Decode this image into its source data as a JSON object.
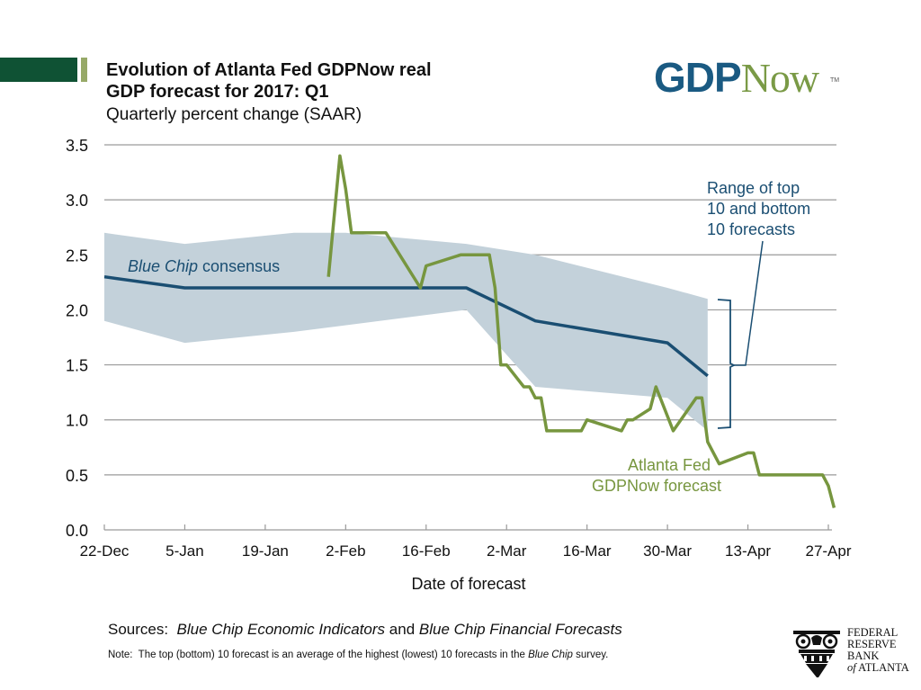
{
  "header": {
    "title_line1": "Evolution of Atlanta Fed GDPNow real",
    "title_line2": "GDP forecast for 2017: Q1",
    "subtitle": "Quarterly percent change (SAAR)"
  },
  "logo": {
    "part1": "GDP",
    "part2": "Now",
    "tm": "TM"
  },
  "colors": {
    "brand_dark_green": "#0f5234",
    "brand_light_green": "#97a968",
    "consensus_blue": "#1a4e72",
    "gdpnow_green": "#77963f",
    "range_fill": "#c3d1da",
    "grid": "#9a9a9a"
  },
  "chart_data": {
    "type": "line",
    "title": "Evolution of Atlanta Fed GDPNow real GDP forecast for 2017: Q1",
    "subtitle": "Quarterly percent change (SAAR)",
    "xlabel": "Date of forecast",
    "ylabel": "",
    "ylim": [
      0,
      3.5
    ],
    "y_ticks": [
      "0.0",
      "0.5",
      "1.0",
      "1.5",
      "2.0",
      "2.5",
      "3.0",
      "3.5"
    ],
    "y_tick_values": [
      0,
      0.5,
      1.0,
      1.5,
      2.0,
      2.5,
      3.0,
      3.5
    ],
    "x_domain_days": [
      0,
      126
    ],
    "x_ticks": [
      {
        "day": 0,
        "label": "22-Dec"
      },
      {
        "day": 14,
        "label": "5-Jan"
      },
      {
        "day": 28,
        "label": "19-Jan"
      },
      {
        "day": 42,
        "label": "2-Feb"
      },
      {
        "day": 56,
        "label": "16-Feb"
      },
      {
        "day": 70,
        "label": "2-Mar"
      },
      {
        "day": 84,
        "label": "16-Mar"
      },
      {
        "day": 98,
        "label": "30-Mar"
      },
      {
        "day": 112,
        "label": "13-Apr"
      },
      {
        "day": 126,
        "label": "27-Apr"
      }
    ],
    "grid": "horizontal",
    "series": [
      {
        "name": "Blue Chip consensus",
        "label_italic": "Blue Chip",
        "label_rest": " consensus",
        "points": [
          [
            0,
            2.3
          ],
          [
            14,
            2.2
          ],
          [
            63,
            2.2
          ],
          [
            75,
            1.9
          ],
          [
            98,
            1.7
          ],
          [
            105,
            1.4
          ]
        ]
      },
      {
        "name": "Atlanta Fed GDPNow forecast",
        "label_line1": "Atlanta Fed",
        "label_line2": "GDPNow forecast",
        "points": [
          [
            39,
            2.3
          ],
          [
            41,
            3.4
          ],
          [
            42,
            3.1
          ],
          [
            43,
            2.7
          ],
          [
            49,
            2.7
          ],
          [
            55,
            2.2
          ],
          [
            56,
            2.4
          ],
          [
            62,
            2.5
          ],
          [
            67,
            2.5
          ],
          [
            68,
            2.2
          ],
          [
            69,
            1.5
          ],
          [
            70,
            1.5
          ],
          [
            73,
            1.3
          ],
          [
            74,
            1.3
          ],
          [
            75,
            1.2
          ],
          [
            76,
            1.2
          ],
          [
            77,
            0.9
          ],
          [
            83,
            0.9
          ],
          [
            84,
            1.0
          ],
          [
            90,
            0.9
          ],
          [
            91,
            1.0
          ],
          [
            92,
            1.0
          ],
          [
            95,
            1.1
          ],
          [
            96,
            1.3
          ],
          [
            99,
            0.9
          ],
          [
            103,
            1.2
          ],
          [
            104,
            1.2
          ],
          [
            105,
            0.8
          ],
          [
            107,
            0.6
          ],
          [
            112,
            0.7
          ],
          [
            113,
            0.7
          ],
          [
            114,
            0.5
          ],
          [
            125,
            0.5
          ],
          [
            126,
            0.4
          ],
          [
            127,
            0.2
          ]
        ]
      }
    ],
    "range_band": {
      "name": "Range of top 10 and bottom 10 forecasts",
      "label_lines": [
        "Range of top",
        "10 and bottom",
        "10 forecasts"
      ],
      "upper": [
        [
          0,
          2.7
        ],
        [
          14,
          2.6
        ],
        [
          33,
          2.7
        ],
        [
          42,
          2.7
        ],
        [
          63,
          2.6
        ],
        [
          75,
          2.5
        ],
        [
          98,
          2.2
        ],
        [
          105,
          2.1
        ]
      ],
      "lower": [
        [
          105,
          0.9
        ],
        [
          98,
          1.2
        ],
        [
          75,
          1.3
        ],
        [
          63,
          2.0
        ],
        [
          33,
          1.8
        ],
        [
          14,
          1.7
        ],
        [
          0,
          1.9
        ]
      ]
    }
  },
  "footer": {
    "sources_prefix": "Sources:",
    "sources_italic1": "Blue Chip Economic Indicators",
    "sources_mid": " and ",
    "sources_italic2": "Blue Chip Financial Forecasts",
    "note_prefix": "Note:  The top (bottom) 10 forecast is an average of the highest (lowest) 10 forecasts in the ",
    "note_italic": "Blue Chip",
    "note_suffix": " survey."
  },
  "frb_logo": {
    "line1": "FEDERAL",
    "line2": "RESERVE",
    "line3": "BANK",
    "line4_italic": "of",
    "line4_rest": "ATLANTA"
  }
}
